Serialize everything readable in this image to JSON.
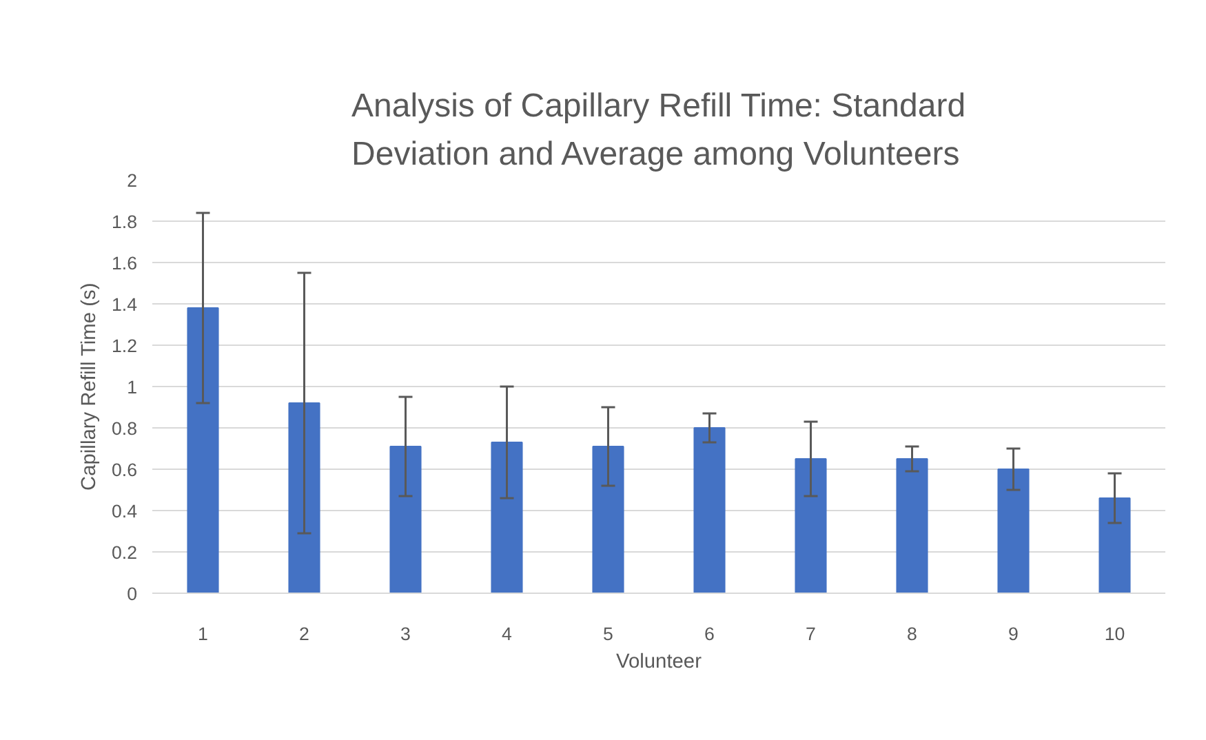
{
  "chart_data": {
    "type": "bar",
    "title": "Analysis of Capillary Refill Time: Standard\nDeviation and Average among Volunteers",
    "xlabel": "Volunteer",
    "ylabel": "Capillary Refill Time (s)",
    "categories": [
      "1",
      "2",
      "3",
      "4",
      "5",
      "6",
      "7",
      "8",
      "9",
      "10"
    ],
    "values": [
      1.38,
      0.92,
      0.71,
      0.73,
      0.71,
      0.8,
      0.65,
      0.65,
      0.6,
      0.46
    ],
    "errors": [
      0.46,
      0.63,
      0.24,
      0.27,
      0.19,
      0.07,
      0.18,
      0.06,
      0.1,
      0.12
    ],
    "color": "#4472c4",
    "ylim": [
      0,
      2
    ],
    "yticks": [
      0,
      0.2,
      0.4,
      0.6,
      0.8,
      1,
      1.2,
      1.4,
      1.6,
      1.8,
      2
    ],
    "grid": "y"
  }
}
